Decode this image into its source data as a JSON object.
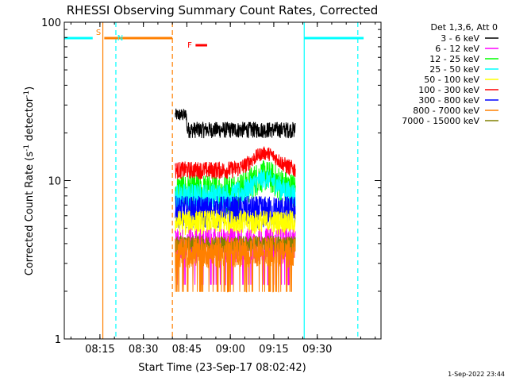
{
  "chart_data": {
    "type": "line",
    "title": "RHESSI Observing Summary Count Rates, Corrected",
    "xlabel": "Start Time (23-Sep-17 08:02:42)",
    "ylabel_main": "Corrected Count Rate (s",
    "ylabel_sup1": "-1",
    "ylabel_mid": " detector",
    "ylabel_sup2": "-1",
    "ylabel_end": ")",
    "yscale": "log",
    "ylim": [
      1,
      100
    ],
    "xlim": [
      "08:02:42",
      "09:52:00"
    ],
    "x_ticks": [
      "08:15",
      "08:30",
      "08:45",
      "09:00",
      "09:15",
      "09:30"
    ],
    "y_ticks": [
      "1",
      "10",
      "100"
    ],
    "grid": false,
    "legend_position": "right",
    "legend_title": "Det 1,3,6, Att 0",
    "series": [
      {
        "name": "3 - 6 keV",
        "color": "#000000",
        "level": 21,
        "spread": 2.5,
        "mode": "flat"
      },
      {
        "name": "6 - 12 keV",
        "color": "#ff00ff",
        "level": 4.0,
        "spread": 1.0,
        "mode": "low"
      },
      {
        "name": "12 - 25 keV",
        "color": "#00ff00",
        "level": 9.5,
        "spread": 2.5,
        "mode": "bump"
      },
      {
        "name": "25 - 50 keV",
        "color": "#00ffff",
        "level": 9.0,
        "spread": 1.5,
        "mode": "bump"
      },
      {
        "name": "50 - 100 keV",
        "color": "#ffff00",
        "level": 5.5,
        "spread": 1.0,
        "mode": "flat"
      },
      {
        "name": "100 - 300 keV",
        "color": "#ff0000",
        "level": 13,
        "spread": 1.5,
        "mode": "bump"
      },
      {
        "name": "300 - 800 keV",
        "color": "#0000ff",
        "level": 6.5,
        "spread": 1.5,
        "mode": "flat"
      },
      {
        "name": "800 - 7000 keV",
        "color": "#ff8000",
        "level": 3.6,
        "spread": 0.8,
        "mode": "low"
      },
      {
        "name": "7000 - 15000 keV",
        "color": "#808000",
        "level": 4.0,
        "spread": 0.5,
        "mode": "flat"
      }
    ],
    "data_time_range": [
      "08:41:00",
      "09:22:30"
    ],
    "annotations": [
      {
        "label": "S",
        "color": "#ff8000"
      },
      {
        "label": "N",
        "color": "#00ffff"
      },
      {
        "label": "F",
        "color": "#ff0000"
      }
    ],
    "saa_bars": [
      {
        "start": "08:02:42",
        "end": "08:12:30",
        "color": "#00ffff"
      },
      {
        "start": "09:25:30",
        "end": "09:46:00",
        "color": "#00ffff"
      },
      {
        "start": "08:16:30",
        "end": "08:40:00",
        "color": "#ff8000"
      }
    ],
    "flare_bar": {
      "start": "08:48:00",
      "end": "08:52:00",
      "color": "#ff0000"
    },
    "vlines": [
      {
        "time": "08:16:00",
        "color": "#ff8000",
        "style": "solid"
      },
      {
        "time": "08:40:00",
        "color": "#ff8000",
        "style": "dashed"
      },
      {
        "time": "08:20:30",
        "color": "#00ffff",
        "style": "dashed"
      },
      {
        "time": "09:25:30",
        "color": "#00ffff",
        "style": "solid"
      },
      {
        "time": "09:44:00",
        "color": "#00ffff",
        "style": "dashed"
      }
    ]
  },
  "footer_timestamp": "1-Sep-2022 23:44"
}
